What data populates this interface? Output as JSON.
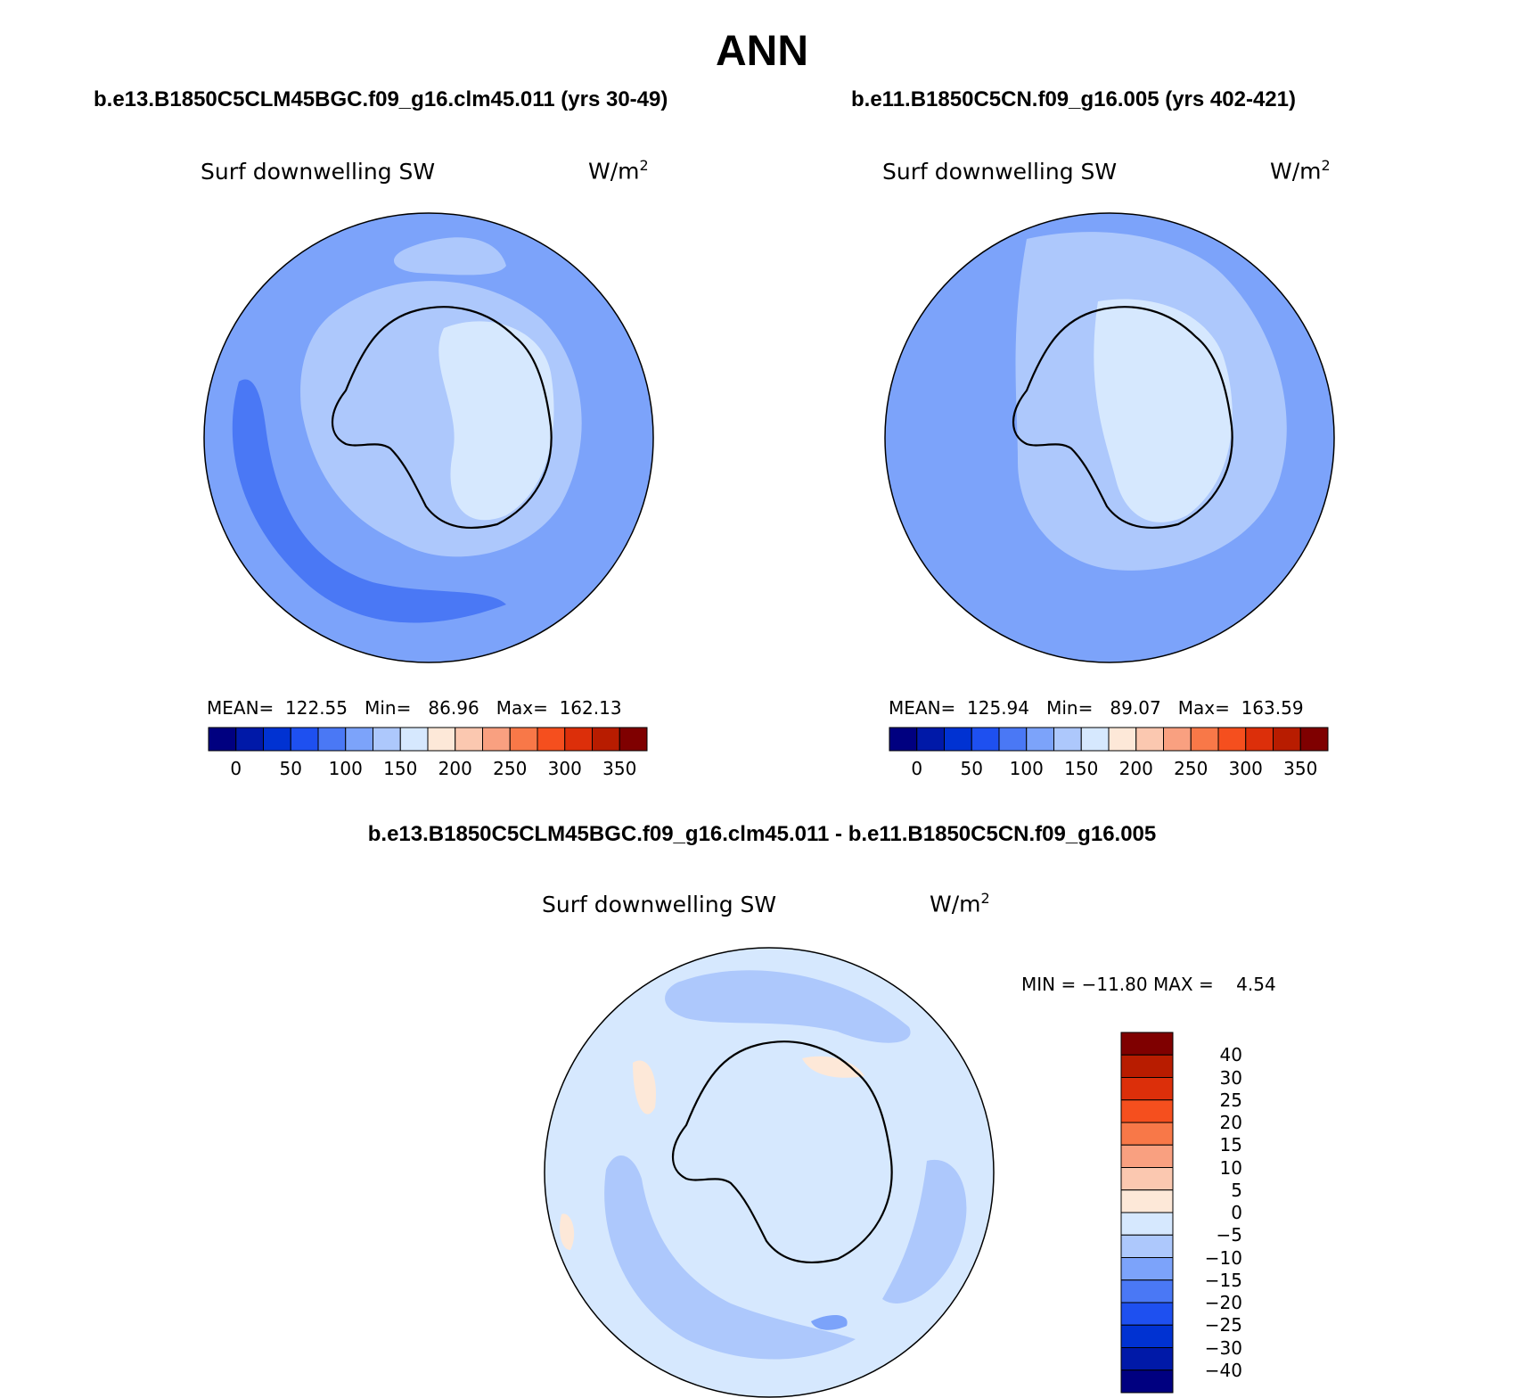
{
  "header": {
    "title": "ANN"
  },
  "panels": [
    {
      "case_title": "b.e13.B1850C5CLM45BGC.f09_g16.clm45.011 (yrs 30-49)",
      "variable": "Surf downwelling SW",
      "units_base": "W/m",
      "units_exp": "2",
      "stats": {
        "mean_label": "MEAN=",
        "mean": "122.55",
        "min_label": "Min=",
        "min": "86.96",
        "max_label": "Max=",
        "max": "162.13"
      }
    },
    {
      "case_title": "b.e11.B1850C5CN.f09_g16.005 (yrs 402-421)",
      "variable": "Surf downwelling SW",
      "units_base": "W/m",
      "units_exp": "2",
      "stats": {
        "mean_label": "MEAN=",
        "mean": "125.94",
        "min_label": "Min=",
        "min": "89.07",
        "max_label": "Max=",
        "max": "163.59"
      }
    }
  ],
  "diff_panel": {
    "case_title": "b.e13.B1850C5CLM45BGC.f09_g16.clm45.011 - b.e11.B1850C5CN.f09_g16.005",
    "variable": "Surf downwelling SW",
    "units_base": "W/m",
    "units_exp": "2",
    "stats_text": "MIN = −11.80 MAX =    4.54"
  },
  "colorbar_main": {
    "colors": [
      "#000080",
      "#0019a8",
      "#0032d2",
      "#1e50f0",
      "#4a78f5",
      "#7ca3fa",
      "#adc8fc",
      "#d6e8fe",
      "#fde8d8",
      "#fbc8b0",
      "#f9a080",
      "#f87848",
      "#f54f1e",
      "#dc2f0a",
      "#b81c00",
      "#7f0000"
    ],
    "labels": [
      "0",
      "50",
      "100",
      "150",
      "200",
      "250",
      "300",
      "350"
    ]
  },
  "colorbar_diff": {
    "colors_top_to_bottom": [
      "#7f0000",
      "#b81c00",
      "#dc2f0a",
      "#f54f1e",
      "#f87848",
      "#f9a080",
      "#fbc8b0",
      "#fde8d8",
      "#d6e8fe",
      "#adc8fc",
      "#7ca3fa",
      "#4a78f5",
      "#1e50f0",
      "#0032d2",
      "#0019a8",
      "#000080"
    ],
    "labels_top_to_bottom": [
      "40",
      "30",
      "25",
      "20",
      "15",
      "10",
      "5",
      "0",
      "−5",
      "−10",
      "−15",
      "−20",
      "−25",
      "−30",
      "−40"
    ]
  },
  "map_colors": {
    "ocean_panel1": "#7ca3fa",
    "band_panel1": "#4a78f5",
    "ocean_panel2": "#7ca3fa",
    "mid": "#adc8fc",
    "light": "#d6e8fe",
    "diff_bg": "#d6e8fe",
    "diff_blue": "#adc8fc",
    "diff_blue2": "#7ca3fa",
    "diff_pos": "#fde8d8"
  }
}
